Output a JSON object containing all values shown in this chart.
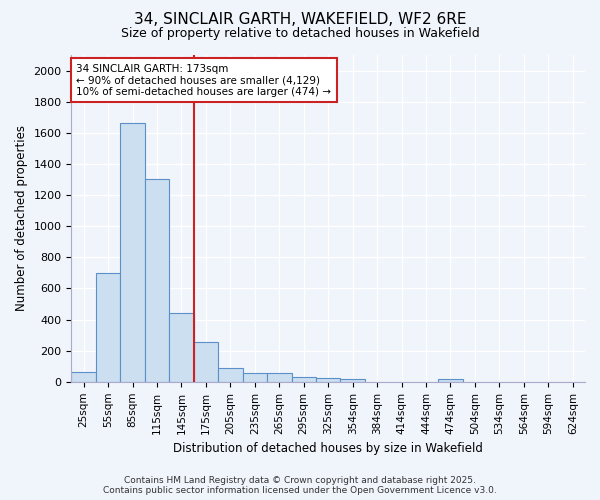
{
  "title_line1": "34, SINCLAIR GARTH, WAKEFIELD, WF2 6RE",
  "title_line2": "Size of property relative to detached houses in Wakefield",
  "xlabel": "Distribution of detached houses by size in Wakefield",
  "ylabel": "Number of detached properties",
  "categories": [
    "25sqm",
    "55sqm",
    "85sqm",
    "115sqm",
    "145sqm",
    "175sqm",
    "205sqm",
    "235sqm",
    "265sqm",
    "295sqm",
    "325sqm",
    "354sqm",
    "384sqm",
    "414sqm",
    "444sqm",
    "474sqm",
    "504sqm",
    "534sqm",
    "564sqm",
    "594sqm",
    "624sqm"
  ],
  "values": [
    65,
    700,
    1660,
    1305,
    445,
    255,
    90,
    55,
    55,
    30,
    25,
    15,
    0,
    0,
    0,
    15,
    0,
    0,
    0,
    0,
    0
  ],
  "bar_color": "#ccdff0",
  "bar_edge_color": "#5b8fc9",
  "vline_color": "#cc2222",
  "annotation_text": "34 SINCLAIR GARTH: 173sqm\n← 90% of detached houses are smaller (4,129)\n10% of semi-detached houses are larger (474) →",
  "ylim": [
    0,
    2100
  ],
  "yticks": [
    0,
    200,
    400,
    600,
    800,
    1000,
    1200,
    1400,
    1600,
    1800,
    2000
  ],
  "background_color": "#f0f4fb",
  "plot_bg_color": "#f0f4fb",
  "grid_color": "#ffffff",
  "footer_line1": "Contains HM Land Registry data © Crown copyright and database right 2025.",
  "footer_line2": "Contains public sector information licensed under the Open Government Licence v3.0."
}
